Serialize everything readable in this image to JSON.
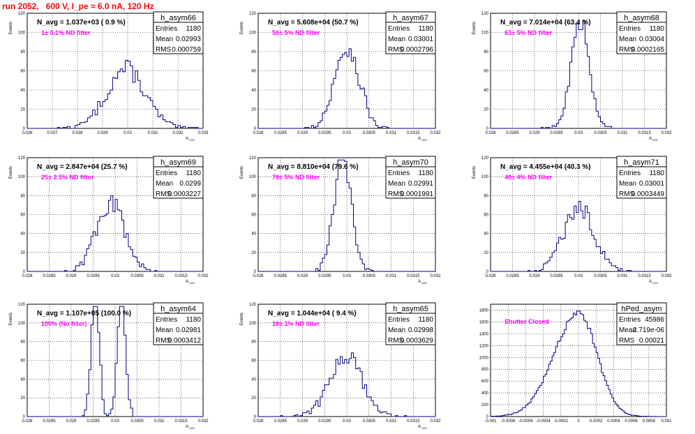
{
  "header": {
    "title": "run 2052,   600 V, I_pe ≈ 6.0 nA, 120 Hz"
  },
  "colors": {
    "title": "#ff0000",
    "histogram_line": "#000080",
    "annotation": "#ff00ff",
    "grid": "#000000"
  },
  "chart_data": [
    {
      "type": "histogram",
      "name": "h_asym66",
      "stats": {
        "Entries": "1180",
        "Mean": "0.02993",
        "RMS": "0.000759"
      },
      "navg_label": "N_avg = 1.037e+03 ( 0.9 %)",
      "filter_label": "1± 0.1% ND filter",
      "xlabel": "A_LED",
      "ylabel": "Events",
      "xlim": [
        0.026,
        0.033
      ],
      "ylim": [
        0,
        120
      ],
      "xticks": [
        "0.026",
        "0.027",
        "0.028",
        "0.029",
        "0.03",
        "0.031",
        "0.032",
        "0.033"
      ],
      "yticks": [
        "0",
        "20",
        "40",
        "60",
        "80",
        "100",
        "120"
      ],
      "grid": true,
      "mean": 0.02993,
      "rms": 0.000759,
      "entries": 1180,
      "bin_width": 0.0001
    },
    {
      "type": "histogram",
      "name": "h_asym67",
      "stats": {
        "Entries": "1180",
        "Mean": "0.03001",
        "RMS": "0.0002796"
      },
      "navg_label": "N_avg = 5.608e+04 (50.7 %)",
      "filter_label": "50± 5% ND filter",
      "xlabel": "A_LED",
      "ylabel": "Events",
      "xlim": [
        0.028,
        0.032
      ],
      "ylim": [
        0,
        120
      ],
      "xticks": [
        "0.028",
        "0.0285",
        "0.029",
        "0.0295",
        "0.03",
        "0.0305",
        "0.031",
        "0.0315",
        "0.032"
      ],
      "yticks": [
        "0",
        "20",
        "40",
        "60",
        "80",
        "100",
        "120"
      ],
      "grid": true,
      "mean": 0.03001,
      "rms": 0.0002796,
      "entries": 1180,
      "bin_width": 5e-05
    },
    {
      "type": "histogram",
      "name": "h_asym68",
      "stats": {
        "Entries": "1180",
        "Mean": "0.03004",
        "RMS": "0.0002165"
      },
      "navg_label": "N_avg = 7.014e+04 (63.4 %)",
      "filter_label": "63± 5% ND filter",
      "xlabel": "A_LED",
      "ylabel": "Events",
      "xlim": [
        0.028,
        0.032
      ],
      "ylim": [
        0,
        120
      ],
      "xticks": [
        "0.028",
        "0.0285",
        "0.029",
        "0.0295",
        "0.03",
        "0.0305",
        "0.031",
        "0.0315",
        "0.032"
      ],
      "yticks": [
        "0",
        "20",
        "40",
        "60",
        "80",
        "100",
        "120"
      ],
      "grid": true,
      "mean": 0.03004,
      "rms": 0.0002165,
      "entries": 1180,
      "bin_width": 5e-05
    },
    {
      "type": "histogram",
      "name": "h_asym69",
      "stats": {
        "Entries": "1180",
        "Mean": "0.0299",
        "RMS": "0.0003227"
      },
      "navg_label": "N_avg = 2.847e+04 (25.7 %)",
      "filter_label": "25± 2.5% ND filter",
      "xlabel": "A_LED",
      "ylabel": "Events",
      "xlim": [
        0.028,
        0.032
      ],
      "ylim": [
        0,
        120
      ],
      "xticks": [
        "0.028",
        "0.0285",
        "0.029",
        "0.0295",
        "0.03",
        "0.0305",
        "0.031",
        "0.0315",
        "0.032"
      ],
      "yticks": [
        "0",
        "20",
        "40",
        "60",
        "80",
        "100",
        "120"
      ],
      "grid": true,
      "mean": 0.0299,
      "rms": 0.0003227,
      "entries": 1180,
      "bin_width": 5e-05
    },
    {
      "type": "histogram",
      "name": "h_asym70",
      "stats": {
        "Entries": "1180",
        "Mean": "0.02991",
        "RMS": "0.0001991"
      },
      "navg_label": "N_avg = 8.810e+04 (79.6 %)",
      "filter_label": "79± 5% ND filter",
      "xlabel": "A_LED",
      "ylabel": "Events",
      "xlim": [
        0.028,
        0.032
      ],
      "ylim": [
        0,
        120
      ],
      "xticks": [
        "0.028",
        "0.0285",
        "0.029",
        "0.0295",
        "0.03",
        "0.0305",
        "0.031",
        "0.0315",
        "0.032"
      ],
      "yticks": [
        "0",
        "20",
        "40",
        "60",
        "80",
        "100",
        "120"
      ],
      "grid": true,
      "mean": 0.02991,
      "rms": 0.0001991,
      "entries": 1180,
      "bin_width": 5e-05
    },
    {
      "type": "histogram",
      "name": "h_asym71",
      "stats": {
        "Entries": "1180",
        "Mean": "0.03001",
        "RMS": "0.0003449"
      },
      "navg_label": "N_avg = 4.455e+04 (40.3 %)",
      "filter_label": "40± 4% ND filter",
      "xlabel": "A_LED",
      "ylabel": "Events",
      "xlim": [
        0.028,
        0.032
      ],
      "ylim": [
        0,
        120
      ],
      "xticks": [
        "0.028",
        "0.0285",
        "0.029",
        "0.0295",
        "0.03",
        "0.0305",
        "0.031",
        "0.0315",
        "0.032"
      ],
      "yticks": [
        "0",
        "20",
        "40",
        "60",
        "80",
        "100",
        "120"
      ],
      "grid": true,
      "mean": 0.03001,
      "rms": 0.0003449,
      "entries": 1180,
      "bin_width": 5e-05
    },
    {
      "type": "histogram",
      "name": "h_asym64",
      "stats": {
        "Entries": "1180",
        "Mean": "0.02981",
        "RMS": "0.0003412"
      },
      "navg_label": "N_avg = 1.107e+05 (100.0 %)",
      "filter_label": "100% (No filter)",
      "xlabel": "A_LED",
      "ylabel": "Events",
      "xlim": [
        0.028,
        0.032
      ],
      "ylim": [
        0,
        120
      ],
      "xticks": [
        "0.028",
        "0.0285",
        "0.029",
        "0.0295",
        "0.03",
        "0.0305",
        "0.031",
        "0.0315",
        "0.032"
      ],
      "yticks": [
        "0",
        "20",
        "40",
        "60",
        "80",
        "100",
        "120"
      ],
      "grid": true,
      "mean": 0.02981,
      "rms": 0.0003412,
      "entries": 1180,
      "bin_width": 5e-05,
      "bimodal": {
        "peaks": [
          0.02955,
          0.03015
        ],
        "sigma": 9e-05
      }
    },
    {
      "type": "histogram",
      "name": "h_asym65",
      "stats": {
        "Entries": "1180",
        "Mean": "0.02998",
        "RMS": "0.0003629"
      },
      "navg_label": "N_avg = 1.044e+04 ( 9.4 %)",
      "filter_label": "10± 1% ND filter",
      "xlabel": "A_LED",
      "ylabel": "Events",
      "xlim": [
        0.028,
        0.032
      ],
      "ylim": [
        0,
        120
      ],
      "xticks": [
        "0.028",
        "0.0285",
        "0.029",
        "0.0295",
        "0.03",
        "0.0305",
        "0.031",
        "0.0315",
        "0.032"
      ],
      "yticks": [
        "0",
        "20",
        "40",
        "60",
        "80",
        "100",
        "120"
      ],
      "grid": true,
      "mean": 0.02998,
      "rms": 0.0003629,
      "entries": 1180,
      "bin_width": 5e-05
    },
    {
      "type": "histogram",
      "name": "hPed_asym",
      "stats": {
        "Entries": "45986",
        "Mean": "2.719e-06",
        "RMS": "0.00021"
      },
      "navg_label": "",
      "filter_label": "Shutter Closed",
      "xlabel": "",
      "ylabel": "",
      "xlim": [
        -0.001,
        0.001
      ],
      "ylim": [
        0,
        1900
      ],
      "xticks": [
        "-0.001",
        "-0.0008",
        "-0.0006",
        "-0.0004",
        "-0.0002",
        "0",
        "0.0002",
        "0.0004",
        "0.0006",
        "0.0008",
        "0.001"
      ],
      "yticks": [
        "0",
        "200",
        "400",
        "600",
        "800",
        "1000",
        "1200",
        "1400",
        "1600",
        "1800"
      ],
      "grid": true,
      "mean": 2.719e-06,
      "rms": 0.00021,
      "entries": 45986,
      "bin_width": 2e-05,
      "skew_left": true
    }
  ]
}
